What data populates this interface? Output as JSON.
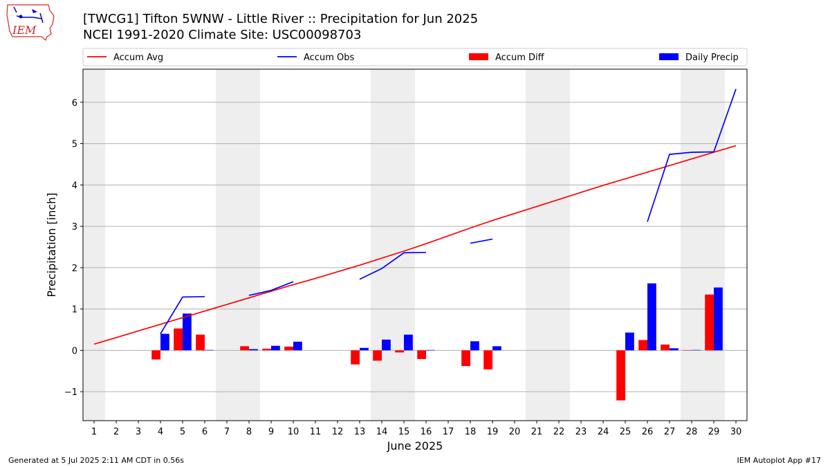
{
  "title_line1": "[TWCG1] Tifton 5WNW - Little River :: Precipitation for Jun 2025",
  "title_line2": "NCEI 1991-2020 Climate Site: USC00098703",
  "logo_text": "IEM",
  "footer_left": "Generated at 5 Jul 2025 2:11 AM CDT in 0.56s",
  "footer_right": "IEM Autoplot App #17",
  "colors": {
    "accum_avg": "#ff0000",
    "accum_obs": "#0000ff",
    "accum_diff": "#ff0000",
    "daily_precip": "#0000ff",
    "weekend_shade": "#eeeeee",
    "grid": "#b0b0b0"
  },
  "chart_data": {
    "type": "bar",
    "xlabel": "June 2025",
    "ylabel": "Precipitation [inch]",
    "xlim": [
      0.5,
      30.5
    ],
    "ylim": [
      -1.7,
      6.8
    ],
    "yticks": [
      -1,
      0,
      1,
      2,
      3,
      4,
      5,
      6
    ],
    "ytick_labels": [
      "−1",
      "0",
      "1",
      "2",
      "3",
      "4",
      "5",
      "6"
    ],
    "grid": "horizontal",
    "legend_position": "top",
    "legend": [
      "Accum Avg",
      "Accum Obs",
      "Accum Diff",
      "Daily Precip"
    ],
    "categories": [
      "1",
      "2",
      "3",
      "4",
      "5",
      "6",
      "7",
      "8",
      "9",
      "10",
      "11",
      "12",
      "13",
      "14",
      "15",
      "16",
      "17",
      "18",
      "19",
      "20",
      "21",
      "22",
      "23",
      "24",
      "25",
      "26",
      "27",
      "28",
      "29",
      "30"
    ],
    "weekend_days": [
      1,
      7,
      8,
      14,
      15,
      21,
      22,
      28,
      29
    ],
    "series": [
      {
        "name": "Accum Avg",
        "kind": "line",
        "values": [
          0.15,
          0.31,
          0.47,
          0.63,
          0.79,
          0.95,
          1.11,
          1.27,
          1.43,
          1.59,
          1.74,
          1.9,
          2.06,
          2.23,
          2.4,
          2.58,
          2.77,
          2.96,
          3.14,
          3.31,
          3.48,
          3.65,
          3.82,
          3.99,
          4.15,
          4.31,
          4.47,
          4.63,
          4.79,
          4.95
        ]
      },
      {
        "name": "Accum Obs",
        "kind": "line",
        "values": [
          null,
          null,
          null,
          0.4,
          1.29,
          1.3,
          null,
          1.33,
          1.45,
          1.66,
          null,
          null,
          1.72,
          1.98,
          2.36,
          2.37,
          null,
          2.59,
          2.69,
          null,
          null,
          null,
          null,
          null,
          null,
          3.11,
          4.74,
          4.79,
          4.8,
          6.32
        ]
      },
      {
        "name": "Accum Diff",
        "kind": "bar",
        "values": [
          null,
          null,
          null,
          -0.22,
          0.53,
          0.38,
          null,
          0.1,
          0.04,
          0.09,
          null,
          null,
          -0.34,
          -0.25,
          -0.05,
          -0.21,
          null,
          -0.38,
          -0.46,
          null,
          null,
          null,
          null,
          null,
          -1.21,
          0.25,
          0.14,
          0.0,
          1.35,
          null
        ]
      },
      {
        "name": "Daily Precip",
        "kind": "bar",
        "values": [
          null,
          null,
          null,
          0.4,
          0.89,
          0.01,
          null,
          0.03,
          0.11,
          0.21,
          null,
          null,
          0.06,
          0.26,
          0.38,
          0.01,
          null,
          0.22,
          0.1,
          null,
          null,
          null,
          null,
          null,
          0.43,
          1.62,
          0.05,
          0.01,
          1.52,
          null
        ]
      }
    ]
  }
}
